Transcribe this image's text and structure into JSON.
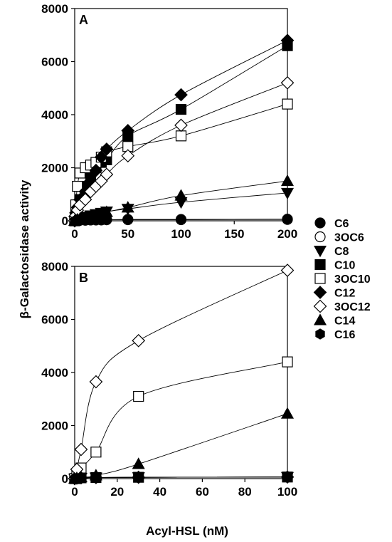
{
  "chart_data": {
    "type": "scatter",
    "ylabel": "β-Galactosidase activity",
    "xlabel": "Acyl-HSL (nM)",
    "legend": {
      "placement": "right",
      "entries": [
        {
          "name": "C6",
          "marker": "circle",
          "fill": "#000000"
        },
        {
          "name": "3OC6",
          "marker": "circle",
          "fill": "#ffffff"
        },
        {
          "name": "C8",
          "marker": "triangle-down",
          "fill": "#000000"
        },
        {
          "name": "C10",
          "marker": "square",
          "fill": "#000000"
        },
        {
          "name": "3OC10",
          "marker": "square",
          "fill": "#ffffff"
        },
        {
          "name": "C12",
          "marker": "diamond",
          "fill": "#000000"
        },
        {
          "name": "3OC12",
          "marker": "diamond",
          "fill": "#ffffff"
        },
        {
          "name": "C14",
          "marker": "triangle-up",
          "fill": "#000000"
        },
        {
          "name": "C16",
          "marker": "hexagon",
          "fill": "#000000"
        }
      ]
    },
    "panels": [
      {
        "label": "A",
        "xlim": [
          0,
          200
        ],
        "ylim": [
          0,
          8000
        ],
        "xticks": [
          "0",
          "50",
          "100",
          "150",
          "200"
        ],
        "yticks": [
          "0",
          "2000",
          "4000",
          "6000",
          "8000"
        ],
        "series": [
          {
            "name": "C6",
            "x": [
              0,
              1,
              2.5,
              5,
              10,
              15,
              20,
              25,
              30,
              50,
              100,
              200
            ],
            "y": [
              0,
              10,
              20,
              20,
              30,
              30,
              30,
              40,
              40,
              50,
              50,
              60
            ]
          },
          {
            "name": "3OC6",
            "x": [
              0,
              1,
              2.5,
              5,
              10,
              15,
              20,
              25,
              30,
              50,
              100,
              200
            ],
            "y": [
              0,
              10,
              10,
              20,
              20,
              30,
              30,
              30,
              40,
              40,
              40,
              50
            ]
          },
          {
            "name": "C8",
            "x": [
              0,
              1,
              2.5,
              5,
              10,
              15,
              20,
              25,
              30,
              50,
              100,
              200
            ],
            "y": [
              0,
              30,
              60,
              100,
              150,
              200,
              250,
              300,
              350,
              450,
              700,
              1050
            ]
          },
          {
            "name": "C10",
            "x": [
              0,
              1,
              2.5,
              5,
              10,
              15,
              20,
              25,
              30,
              50,
              100,
              200
            ],
            "y": [
              0,
              200,
              400,
              800,
              1300,
              1700,
              2000,
              2200,
              2300,
              3200,
              4200,
              6600
            ]
          },
          {
            "name": "3OC10",
            "x": [
              0,
              1,
              2.5,
              5,
              10,
              15,
              20,
              25,
              30,
              50,
              100,
              200
            ],
            "y": [
              0,
              600,
              1300,
              1800,
              2000,
              2100,
              2200,
              2400,
              2600,
              2800,
              3200,
              4400
            ]
          },
          {
            "name": "C12",
            "x": [
              0,
              1,
              2.5,
              5,
              10,
              15,
              20,
              25,
              30,
              50,
              100,
              200
            ],
            "y": [
              0,
              300,
              500,
              800,
              1100,
              1500,
              1900,
              2400,
              2700,
              3400,
              4750,
              6800
            ]
          },
          {
            "name": "3OC12",
            "x": [
              0,
              1,
              2.5,
              5,
              10,
              15,
              20,
              25,
              30,
              50,
              100,
              200
            ],
            "y": [
              0,
              200,
              400,
              600,
              800,
              1100,
              1300,
              1500,
              1750,
              2450,
              3600,
              5200
            ]
          },
          {
            "name": "C14",
            "x": [
              0,
              1,
              2.5,
              5,
              10,
              15,
              20,
              25,
              30,
              50,
              100,
              200
            ],
            "y": [
              0,
              20,
              50,
              80,
              120,
              180,
              230,
              280,
              330,
              500,
              950,
              1500
            ]
          },
          {
            "name": "C16",
            "x": [
              0,
              1,
              2.5,
              5,
              10,
              15,
              20,
              25,
              30,
              50,
              100,
              200
            ],
            "y": [
              0,
              10,
              20,
              20,
              30,
              30,
              40,
              40,
              40,
              50,
              50,
              60
            ]
          }
        ]
      },
      {
        "label": "B",
        "xlim": [
          0,
          100
        ],
        "ylim": [
          0,
          8000
        ],
        "xticks": [
          "0",
          "20",
          "40",
          "60",
          "80",
          "100"
        ],
        "yticks": [
          "0",
          "2000",
          "4000",
          "6000",
          "8000"
        ],
        "series": [
          {
            "name": "C6",
            "x": [
              0,
              1,
              3,
              10,
              30,
              100
            ],
            "y": [
              0,
              20,
              30,
              40,
              50,
              60
            ]
          },
          {
            "name": "3OC6",
            "x": [
              0,
              1,
              3,
              10,
              30,
              100
            ],
            "y": [
              0,
              20,
              30,
              40,
              50,
              60
            ]
          },
          {
            "name": "C8",
            "x": [
              0,
              1,
              3,
              10,
              30,
              100
            ],
            "y": [
              0,
              20,
              30,
              40,
              50,
              60
            ]
          },
          {
            "name": "C10",
            "x": [
              0,
              1,
              3,
              10,
              30,
              100
            ],
            "y": [
              0,
              20,
              30,
              40,
              50,
              60
            ]
          },
          {
            "name": "3OC10",
            "x": [
              0,
              1,
              3,
              10,
              30,
              100
            ],
            "y": [
              0,
              200,
              400,
              1000,
              3100,
              4400
            ]
          },
          {
            "name": "C12",
            "x": [
              0,
              1,
              3,
              10,
              30,
              100
            ],
            "y": [
              0,
              20,
              30,
              40,
              50,
              60
            ]
          },
          {
            "name": "3OC12",
            "x": [
              0,
              1,
              3,
              10,
              30,
              100
            ],
            "y": [
              0,
              350,
              1100,
              3650,
              5200,
              7850
            ]
          },
          {
            "name": "C14",
            "x": [
              0,
              1,
              3,
              10,
              30,
              100
            ],
            "y": [
              0,
              20,
              50,
              120,
              550,
              2450
            ]
          },
          {
            "name": "C16",
            "x": [
              0,
              1,
              3,
              10,
              30,
              100
            ],
            "y": [
              0,
              20,
              30,
              40,
              50,
              60
            ]
          }
        ]
      }
    ]
  }
}
